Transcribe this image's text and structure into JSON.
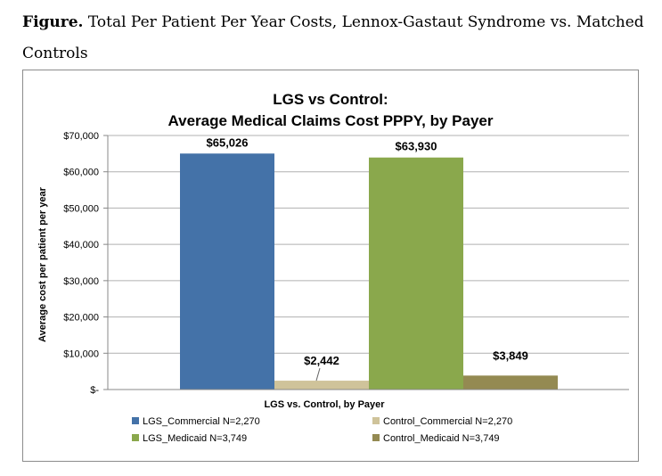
{
  "caption": {
    "label": "Figure.",
    "text": "Total Per Patient Per Year Costs, Lennox-Gastaut Syndrome vs. Matched Controls"
  },
  "chart_data": {
    "type": "bar",
    "title": [
      "LGS vs Control:",
      "Average Medical Claims Cost PPPY, by Payer"
    ],
    "xlabel": "LGS vs. Control, by Payer",
    "ylabel": "Average cost per patient per year",
    "ylim": [
      0,
      70000
    ],
    "yticks": [
      0,
      10000,
      20000,
      30000,
      40000,
      50000,
      60000,
      70000
    ],
    "ytick_labels": [
      "$-",
      "$10,000",
      "$20,000",
      "$30,000",
      "$40,000",
      "$50,000",
      "$60,000",
      "$70,000"
    ],
    "grid": true,
    "legend_position": "bottom",
    "series": [
      {
        "name": "LGS_Commercial N=2,270",
        "value": 65026,
        "label": "$65,026",
        "color": "#4472a8"
      },
      {
        "name": "Control_Commercial N=2,270",
        "value": 2442,
        "label": "$2,442",
        "color": "#cfc39a"
      },
      {
        "name": "LGS_Medicaid N=3,749",
        "value": 63930,
        "label": "$63,930",
        "color": "#8aa84c"
      },
      {
        "name": "Control_Medicaid N=3,749",
        "value": 3849,
        "label": "$3,849",
        "color": "#948a52"
      }
    ]
  }
}
